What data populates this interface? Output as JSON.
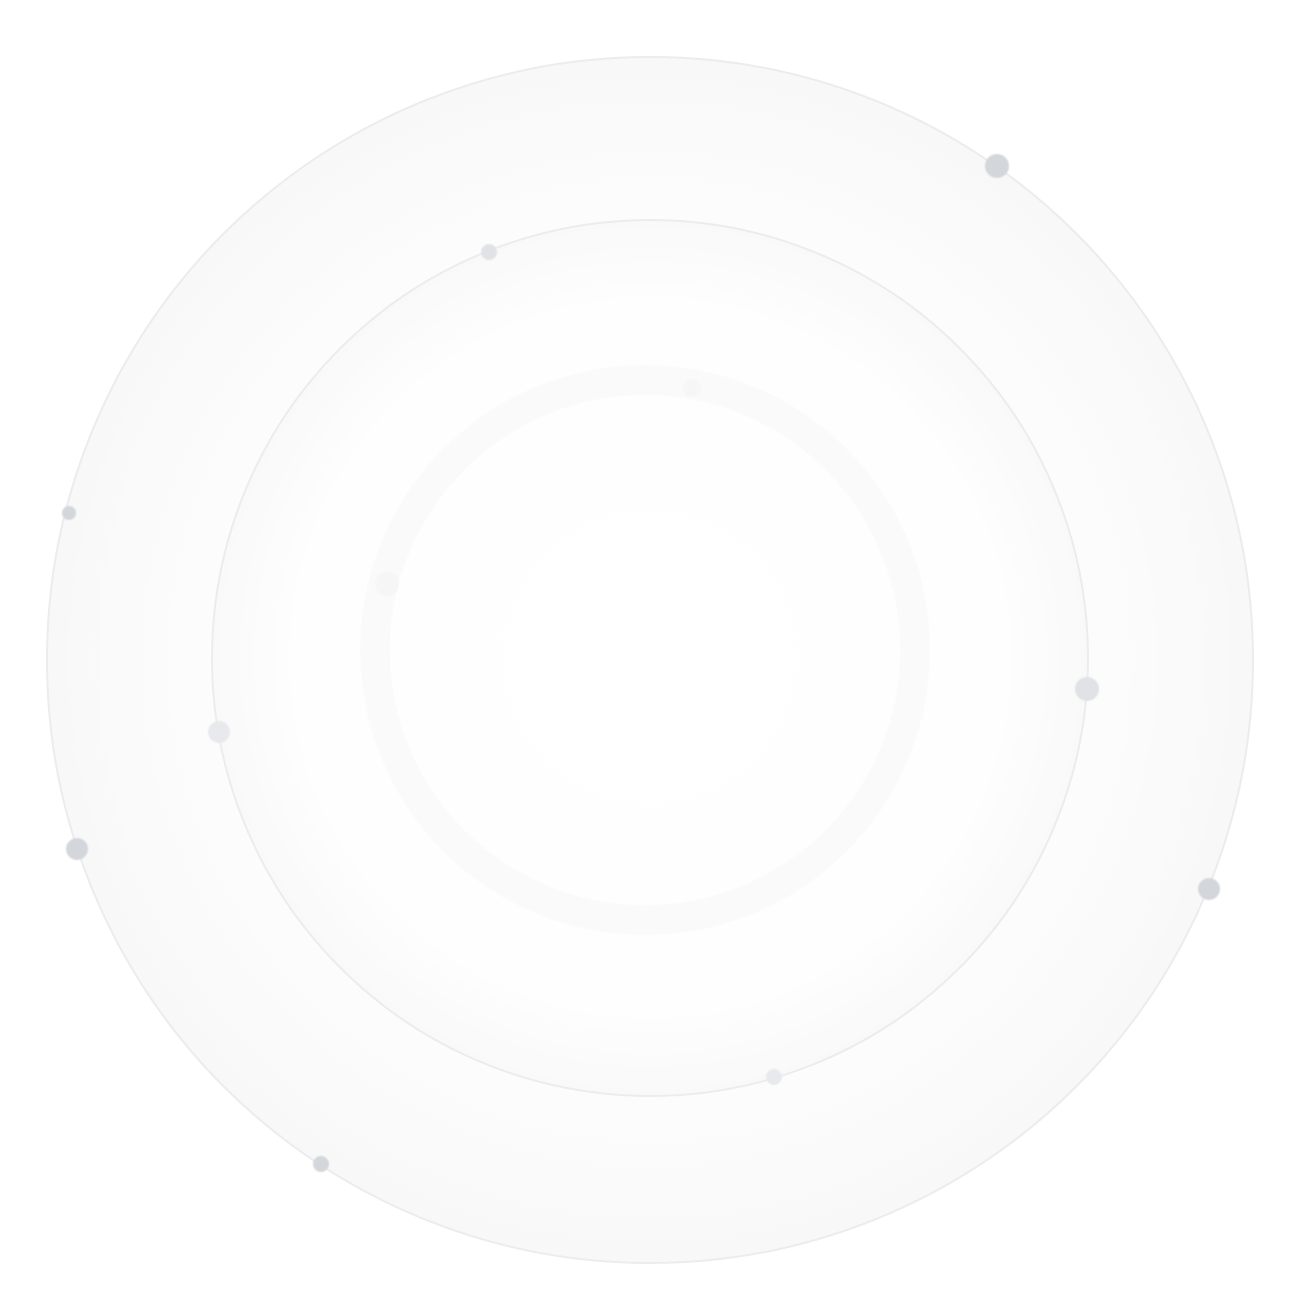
{
  "graphic": {
    "icon": "orbit-rings-icon",
    "colors": {
      "background": "#ffffff",
      "ring_fill": "#fafafa",
      "ring_stroke": "#ececee",
      "dot_dark": "#d3d6db",
      "dot_light": "#e4e5e9",
      "dot_faint": "#f4f4f6"
    }
  }
}
